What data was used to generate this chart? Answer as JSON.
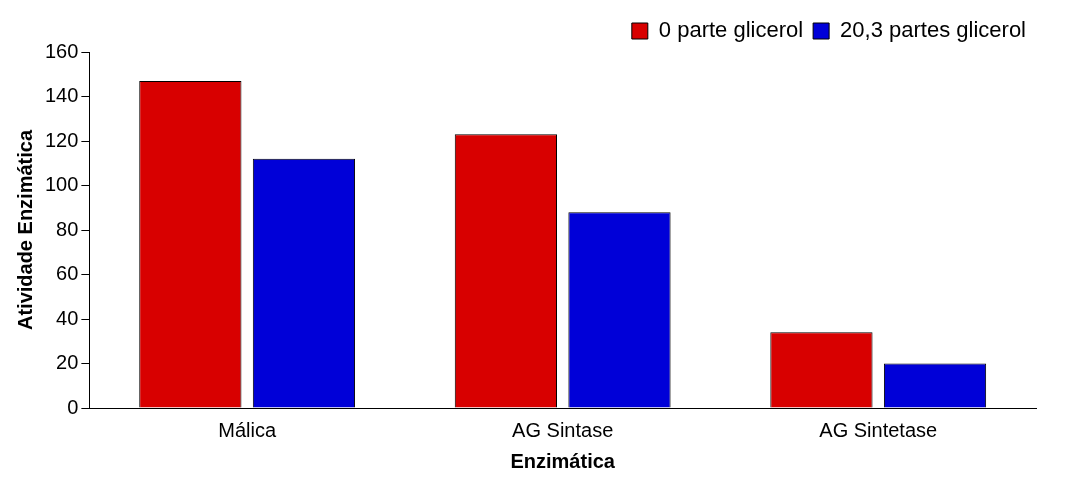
{
  "chart_data": {
    "type": "bar",
    "xlabel": "Enzimática",
    "ylabel": "Atividade Enzimática",
    "categories": [
      "Málica",
      "AG Sintase",
      "AG Sintetase"
    ],
    "series": [
      {
        "name": "0 parte glicerol",
        "color": "#d80000",
        "values": [
          147,
          123,
          34
        ]
      },
      {
        "name": "20,3 partes glicerol",
        "color": "#0000d8",
        "values": [
          112,
          88,
          20
        ]
      }
    ],
    "ylim": [
      0,
      160
    ],
    "yticks": [
      0,
      20,
      40,
      60,
      80,
      100,
      120,
      140,
      160
    ],
    "grid": false,
    "legend": "top right"
  }
}
